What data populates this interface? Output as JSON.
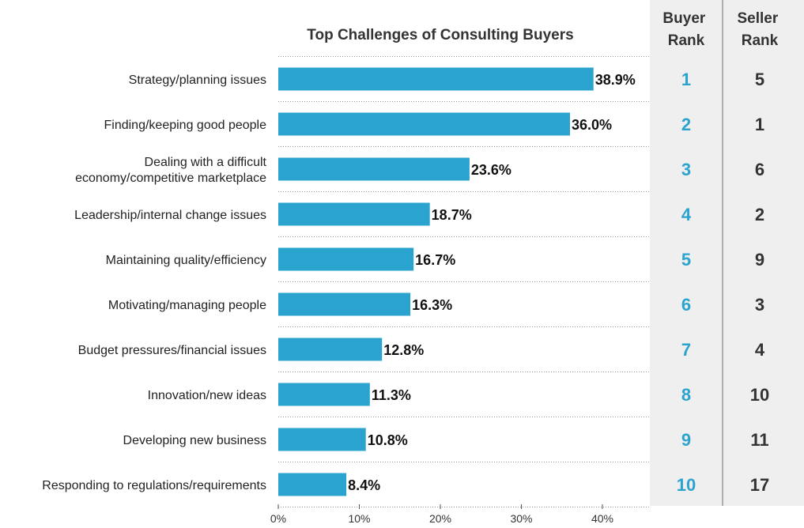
{
  "chart_data": {
    "type": "bar",
    "orientation": "horizontal",
    "title": "Top Challenges of Consulting Buyers",
    "categories": [
      "Strategy/planning issues",
      "Finding/keeping good people",
      "Dealing with a difficult\neconomy/competitive marketplace",
      "Leadership/internal change issues",
      "Maintaining quality/efficiency",
      "Motivating/managing people",
      "Budget pressures/financial issues",
      "Innovation/new ideas",
      "Developing new business",
      "Responding to regulations/requirements"
    ],
    "values": [
      38.9,
      36.0,
      23.6,
      18.7,
      16.7,
      16.3,
      12.8,
      11.3,
      10.8,
      8.4
    ],
    "value_labels": [
      "38.9%",
      "36.0%",
      "23.6%",
      "18.7%",
      "16.7%",
      "16.3%",
      "12.8%",
      "11.3%",
      "10.8%",
      "8.4%"
    ],
    "xlim": [
      0,
      40
    ],
    "x_ticks": [
      0,
      10,
      20,
      30,
      40
    ],
    "x_tick_labels": [
      "0%",
      "10%",
      "20%",
      "30%",
      "40%"
    ],
    "grid": "dotted horizontal separators",
    "bar_color": "#2ba3cf"
  },
  "ranks": {
    "buyer_header": [
      "Buyer",
      "Rank"
    ],
    "seller_header": [
      "Seller",
      "Rank"
    ],
    "buyer": [
      "1",
      "2",
      "3",
      "4",
      "5",
      "6",
      "7",
      "8",
      "9",
      "10"
    ],
    "seller": [
      "5",
      "1",
      "6",
      "2",
      "9",
      "3",
      "4",
      "10",
      "11",
      "17"
    ],
    "buyer_color": "#2ba3cf",
    "panel_color": "#efefef",
    "divider_color": "#999999"
  }
}
